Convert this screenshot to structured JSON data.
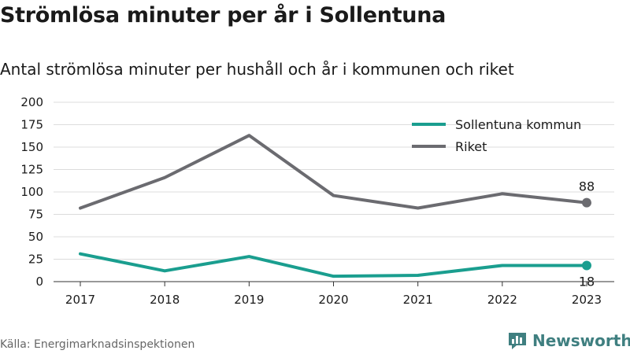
{
  "title": "Strömlösa minuter per år i Sollentuna",
  "subtitle": "Antal strömlösa minuter per hushåll och år i kommunen och riket",
  "source": "Källa: Energimarknadsinspektionen",
  "brand": {
    "name": "Newsworthy",
    "logo_icon": "bar-chart-speech-bubble-icon",
    "color": "#3f7f80"
  },
  "chart_data": {
    "type": "line",
    "x": [
      "2017",
      "2018",
      "2019",
      "2020",
      "2021",
      "2022",
      "2023"
    ],
    "series": [
      {
        "name": "Sollentuna kommun",
        "color": "#1a9e8f",
        "values": [
          31,
          12,
          28,
          6,
          7,
          18,
          18
        ]
      },
      {
        "name": "Riket",
        "color": "#6b6b70",
        "values": [
          82,
          116,
          163,
          96,
          82,
          98,
          88
        ]
      }
    ],
    "ylim": [
      0,
      200
    ],
    "yticks": [
      "0",
      "25",
      "50",
      "75",
      "100",
      "125",
      "150",
      "175",
      "200"
    ],
    "grid": true,
    "legend": "top-right",
    "end_labels": [
      {
        "series": "Riket",
        "text": "88"
      },
      {
        "series": "Sollentuna kommun",
        "text": "18"
      }
    ]
  }
}
